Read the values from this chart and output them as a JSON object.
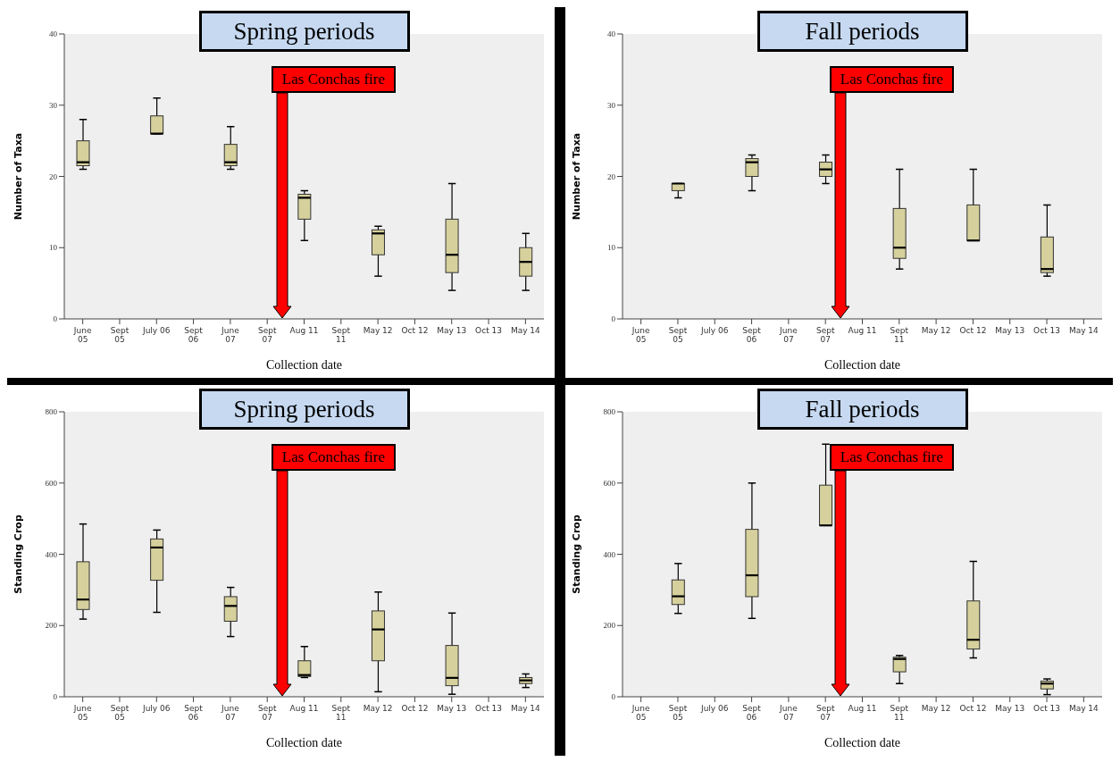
{
  "chart_data": [
    {
      "type": "box",
      "title": "Spring periods",
      "xlabel": "Collection date",
      "ylabel": "Number of Taxa",
      "color": "#d6d09c",
      "categories": [
        "June\n05",
        "Sept\n05",
        "July 06",
        "Sept\n06",
        "June\n07",
        "Sept\n07",
        "Aug 11",
        "Sept\n11",
        "May 12",
        "Oct 12",
        "May 13",
        "Oct 13",
        "May 14"
      ],
      "ylim": [
        0,
        40
      ],
      "yticks": [
        0,
        10,
        20,
        30,
        40
      ],
      "annotations": [
        "Las Conchas fire"
      ],
      "boxes": [
        {
          "low": 21,
          "q1": 21.5,
          "median": 22,
          "q3": 25,
          "high": 28
        },
        null,
        {
          "low": 26,
          "q1": 26,
          "median": 26,
          "q3": 28.5,
          "high": 31
        },
        null,
        {
          "low": 21,
          "q1": 21.5,
          "median": 22,
          "q3": 24.5,
          "high": 27
        },
        null,
        {
          "low": 11,
          "q1": 14,
          "median": 17,
          "q3": 17.5,
          "high": 18
        },
        null,
        {
          "low": 6,
          "q1": 9,
          "median": 12,
          "q3": 12.5,
          "high": 13
        },
        null,
        {
          "low": 4,
          "q1": 6.5,
          "median": 9,
          "q3": 14,
          "high": 19
        },
        null,
        {
          "low": 4,
          "q1": 6,
          "median": 8,
          "q3": 10,
          "high": 12
        }
      ]
    },
    {
      "type": "box",
      "title": "Fall periods",
      "xlabel": "Collection date",
      "ylabel": "Number of Taxa",
      "color": "#d6d09c",
      "categories": [
        "June\n05",
        "Sept\n05",
        "July 06",
        "Sept\n06",
        "June\n07",
        "Sept\n07",
        "Aug 11",
        "Sept\n11",
        "May 12",
        "Oct 12",
        "May 13",
        "Oct 13",
        "May 14"
      ],
      "ylim": [
        0,
        40
      ],
      "yticks": [
        0,
        10,
        20,
        30,
        40
      ],
      "annotations": [
        "Las Conchas fire"
      ],
      "boxes": [
        null,
        {
          "low": 17,
          "q1": 18,
          "median": 19,
          "q3": 19,
          "high": 19
        },
        null,
        {
          "low": 18,
          "q1": 20,
          "median": 22,
          "q3": 22.5,
          "high": 23
        },
        null,
        {
          "low": 19,
          "q1": 20,
          "median": 21,
          "q3": 22,
          "high": 23
        },
        null,
        {
          "low": 7,
          "q1": 8.5,
          "median": 10,
          "q3": 15.5,
          "high": 21
        },
        null,
        {
          "low": 11,
          "q1": 11,
          "median": 11,
          "q3": 16,
          "high": 21
        },
        null,
        {
          "low": 6,
          "q1": 6.5,
          "median": 7,
          "q3": 11.5,
          "high": 16
        },
        null
      ]
    },
    {
      "type": "box",
      "title": "Spring periods",
      "xlabel": "Collection date",
      "ylabel": "Standing Crop",
      "color": "#d6d09c",
      "categories": [
        "June\n05",
        "Sept\n05",
        "July 06",
        "Sept\n06",
        "June\n07",
        "Sept\n07",
        "Aug 11",
        "Sept\n11",
        "May 12",
        "Oct 12",
        "May 13",
        "Oct 13",
        "May 14"
      ],
      "ylim": [
        0,
        800
      ],
      "yticks": [
        0,
        200,
        400,
        600,
        800
      ],
      "annotations": [
        "Las Conchas fire"
      ],
      "boxes": [
        {
          "low": 218,
          "q1": 245,
          "median": 273,
          "q3": 379,
          "high": 485
        },
        null,
        {
          "low": 237,
          "q1": 327,
          "median": 419,
          "q3": 443,
          "high": 468
        },
        null,
        {
          "low": 169,
          "q1": 212,
          "median": 255,
          "q3": 281,
          "high": 307
        },
        null,
        {
          "low": 54,
          "q1": 57,
          "median": 61,
          "q3": 101,
          "high": 141
        },
        null,
        {
          "low": 14,
          "q1": 101,
          "median": 189,
          "q3": 241,
          "high": 294
        },
        null,
        {
          "low": 7,
          "q1": 31,
          "median": 53,
          "q3": 144,
          "high": 235
        },
        null,
        {
          "low": 26,
          "q1": 37,
          "median": 46,
          "q3": 54,
          "high": 64
        }
      ]
    },
    {
      "type": "box",
      "title": "Fall periods",
      "xlabel": "Collection date",
      "ylabel": "Standing Crop",
      "color": "#d6d09c",
      "categories": [
        "June\n05",
        "Sept\n05",
        "July 06",
        "Sept\n06",
        "June\n07",
        "Sept\n07",
        "Aug 11",
        "Sept\n11",
        "May 12",
        "Oct 12",
        "May 13",
        "Oct 13",
        "May 14"
      ],
      "ylim": [
        0,
        800
      ],
      "yticks": [
        0,
        200,
        400,
        600,
        800
      ],
      "annotations": [
        "Las Conchas fire"
      ],
      "boxes": [
        null,
        {
          "low": 234,
          "q1": 259,
          "median": 282,
          "q3": 328,
          "high": 374
        },
        null,
        {
          "low": 220,
          "q1": 281,
          "median": 341,
          "q3": 470,
          "high": 600
        },
        null,
        {
          "low": 481,
          "q1": 481,
          "median": 481,
          "q3": 594,
          "high": 709
        },
        null,
        {
          "low": 37,
          "q1": 70,
          "median": 106,
          "q3": 111,
          "high": 116
        },
        null,
        {
          "low": 109,
          "q1": 134,
          "median": 160,
          "q3": 269,
          "high": 380
        },
        null,
        {
          "low": 6,
          "q1": 22,
          "median": 37,
          "q3": 44,
          "high": 50
        },
        null
      ]
    }
  ]
}
